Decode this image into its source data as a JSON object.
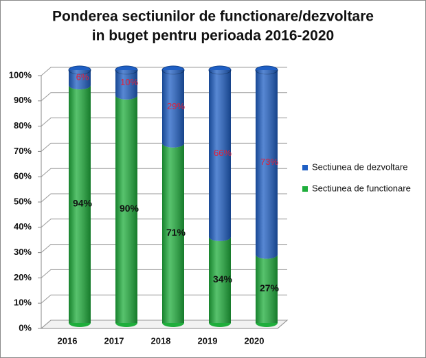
{
  "chart_data": {
    "type": "stacked-cylinder",
    "title": [
      "Ponderea sectiunilor de functionare/dezvoltare",
      "in buget pentru perioada 2016-2020"
    ],
    "categories": [
      "2016",
      "2017",
      "2018",
      "2019",
      "2020"
    ],
    "series": [
      {
        "name": "Sectiunea de functionare",
        "color": "#1fae3c",
        "label_color": "#111111",
        "values": [
          94,
          90,
          71,
          34,
          27
        ],
        "value_labels": [
          "94%",
          "90%",
          "71%",
          "34%",
          "27%"
        ]
      },
      {
        "name": "Sectiunea de dezvoltare",
        "color": "#1f5fc4",
        "label_color": "#e0203a",
        "values": [
          6,
          10,
          29,
          66,
          73
        ],
        "value_labels": [
          "6%",
          "10%",
          "29%",
          "66%",
          "73%"
        ]
      }
    ],
    "ylim": [
      0,
      100
    ],
    "yticks": [
      {
        "value": 0,
        "label": "0%"
      },
      {
        "value": 10,
        "label": "10%"
      },
      {
        "value": 20,
        "label": "20%"
      },
      {
        "value": 30,
        "label": "30%"
      },
      {
        "value": 40,
        "label": "40%"
      },
      {
        "value": 50,
        "label": "50%"
      },
      {
        "value": 60,
        "label": "60%"
      },
      {
        "value": 70,
        "label": "70%"
      },
      {
        "value": 80,
        "label": "80%"
      },
      {
        "value": 90,
        "label": "90%"
      },
      {
        "value": 100,
        "label": "100%"
      }
    ],
    "grid": true,
    "legend": "right"
  }
}
